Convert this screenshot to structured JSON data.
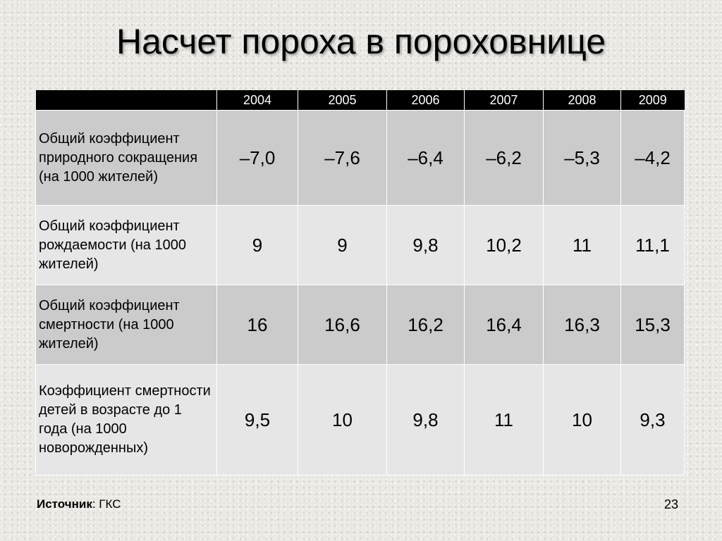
{
  "slide": {
    "title": "Насчет пороха в пороховнице",
    "page_number": "23"
  },
  "table": {
    "years": [
      "2004",
      "2005",
      "2006",
      "2007",
      "2008",
      "2009"
    ],
    "rows": [
      {
        "label": "Общий коэффициент природного сокращения (на 1000 жителей)",
        "values": [
          "–7,0",
          "–7,6",
          "–6,4",
          "–6,2",
          "–5,3",
          "–4,2"
        ]
      },
      {
        "label": "Общий коэффициент рождаемости (на 1000 жителей)",
        "values": [
          "9",
          "9",
          "9,8",
          "10,2",
          "11",
          "11,1"
        ]
      },
      {
        "label": "Общий коэффициент смертности (на 1000 жителей)",
        "values": [
          "16",
          "16,6",
          "16,2",
          "16,4",
          "16,3",
          "15,3"
        ]
      },
      {
        "label": "Коэффициент смертности детей в возрасте до 1 года (на 1000 новорожденных)",
        "values": [
          "9,5",
          "10",
          "9,8",
          "11",
          "10",
          "9,3"
        ]
      }
    ]
  },
  "source": {
    "label": "Источник",
    "separator": ": ",
    "value": "ГКС"
  },
  "colors": {
    "header_bg": "#000000",
    "row_dark": "#cbcbcb",
    "row_light": "#e6e6e6"
  }
}
